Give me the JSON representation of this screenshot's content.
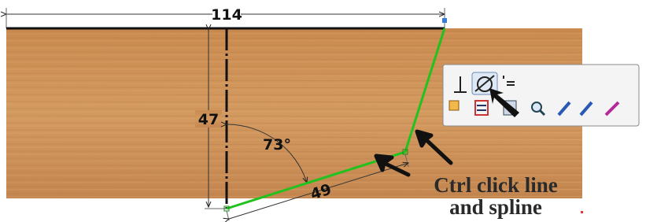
{
  "sketch": {
    "dimensions": [
      {
        "label": "114"
      },
      {
        "label": "47"
      },
      {
        "label": "73°"
      },
      {
        "label": "49"
      }
    ],
    "callout": {
      "lines": [
        "Ctrl click line",
        "and spline"
      ]
    }
  }
}
